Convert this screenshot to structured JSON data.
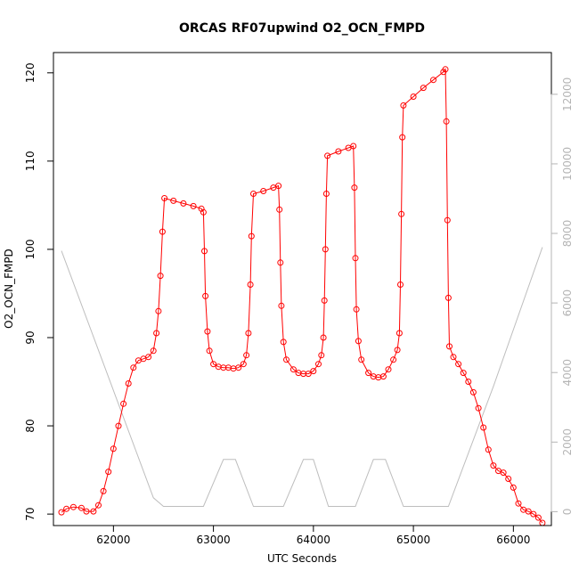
{
  "chart_data": {
    "type": "scatter",
    "title": "ORCAS RF07upwind O2_OCN_FMPD",
    "xlabel": "UTC Seconds",
    "ylabel": "O2_OCN_FMPD",
    "xlim": [
      61400,
      66380
    ],
    "ylim": [
      68.7,
      122.3
    ],
    "y2lim": [
      -400,
      13200
    ],
    "x_ticks": [
      62000,
      63000,
      64000,
      65000,
      66000
    ],
    "y_ticks": [
      70,
      80,
      90,
      100,
      110,
      120
    ],
    "y2_ticks": [
      0,
      2000,
      4000,
      6000,
      8000,
      10000,
      12000
    ],
    "grid": false,
    "legend": "none",
    "colors": {
      "primary": "#ff0000",
      "secondary": "#bebebe",
      "axis": "#000000",
      "right_axis": "#b4b4b4"
    },
    "series": [
      {
        "role": "primary",
        "style": "line-with-open-circles",
        "points": [
          [
            61480,
            70.2
          ],
          [
            61530,
            70.6
          ],
          [
            61600,
            70.8
          ],
          [
            61680,
            70.7
          ],
          [
            61730,
            70.3
          ],
          [
            61800,
            70.3
          ],
          [
            61850,
            71.0
          ],
          [
            61900,
            72.6
          ],
          [
            61950,
            74.8
          ],
          [
            62000,
            77.4
          ],
          [
            62050,
            80.0
          ],
          [
            62100,
            82.5
          ],
          [
            62150,
            84.8
          ],
          [
            62200,
            86.6
          ],
          [
            62250,
            87.4
          ],
          [
            62300,
            87.6
          ],
          [
            62350,
            87.8
          ],
          [
            62400,
            88.5
          ],
          [
            62430,
            90.5
          ],
          [
            62450,
            93.0
          ],
          [
            62470,
            97.0
          ],
          [
            62490,
            102.0
          ],
          [
            62510,
            105.8
          ],
          [
            62600,
            105.5
          ],
          [
            62700,
            105.2
          ],
          [
            62800,
            104.9
          ],
          [
            62880,
            104.6
          ],
          [
            62900,
            104.2
          ],
          [
            62910,
            99.8
          ],
          [
            62920,
            94.7
          ],
          [
            62940,
            90.7
          ],
          [
            62960,
            88.5
          ],
          [
            63000,
            87.0
          ],
          [
            63050,
            86.7
          ],
          [
            63100,
            86.6
          ],
          [
            63150,
            86.6
          ],
          [
            63200,
            86.5
          ],
          [
            63250,
            86.6
          ],
          [
            63300,
            87.0
          ],
          [
            63330,
            88.0
          ],
          [
            63350,
            90.5
          ],
          [
            63370,
            96.0
          ],
          [
            63380,
            101.5
          ],
          [
            63400,
            106.3
          ],
          [
            63500,
            106.6
          ],
          [
            63600,
            107.0
          ],
          [
            63650,
            107.2
          ],
          [
            63660,
            104.5
          ],
          [
            63670,
            98.5
          ],
          [
            63680,
            93.6
          ],
          [
            63700,
            89.5
          ],
          [
            63730,
            87.5
          ],
          [
            63800,
            86.4
          ],
          [
            63850,
            86.0
          ],
          [
            63900,
            85.9
          ],
          [
            63950,
            85.9
          ],
          [
            64000,
            86.2
          ],
          [
            64050,
            87.0
          ],
          [
            64080,
            88.0
          ],
          [
            64100,
            90.0
          ],
          [
            64110,
            94.2
          ],
          [
            64120,
            100.0
          ],
          [
            64130,
            106.3
          ],
          [
            64140,
            110.6
          ],
          [
            64250,
            111.1
          ],
          [
            64350,
            111.5
          ],
          [
            64400,
            111.7
          ],
          [
            64410,
            107.0
          ],
          [
            64420,
            99.0
          ],
          [
            64430,
            93.2
          ],
          [
            64450,
            89.6
          ],
          [
            64480,
            87.5
          ],
          [
            64550,
            86.0
          ],
          [
            64600,
            85.6
          ],
          [
            64650,
            85.5
          ],
          [
            64700,
            85.6
          ],
          [
            64750,
            86.4
          ],
          [
            64800,
            87.5
          ],
          [
            64840,
            88.6
          ],
          [
            64860,
            90.5
          ],
          [
            64870,
            96.0
          ],
          [
            64880,
            104.0
          ],
          [
            64890,
            112.7
          ],
          [
            64900,
            116.3
          ],
          [
            65000,
            117.3
          ],
          [
            65100,
            118.3
          ],
          [
            65200,
            119.2
          ],
          [
            65300,
            120.1
          ],
          [
            65320,
            120.4
          ],
          [
            65330,
            114.5
          ],
          [
            65340,
            103.3
          ],
          [
            65350,
            94.5
          ],
          [
            65360,
            89.0
          ],
          [
            65400,
            87.8
          ],
          [
            65450,
            87.0
          ],
          [
            65500,
            86.0
          ],
          [
            65550,
            85.0
          ],
          [
            65600,
            83.8
          ],
          [
            65650,
            82.0
          ],
          [
            65700,
            79.8
          ],
          [
            65750,
            77.3
          ],
          [
            65800,
            75.5
          ],
          [
            65850,
            74.9
          ],
          [
            65900,
            74.7
          ],
          [
            65950,
            74.0
          ],
          [
            66000,
            73.0
          ],
          [
            66050,
            71.2
          ],
          [
            66100,
            70.5
          ],
          [
            66150,
            70.3
          ],
          [
            66200,
            70.0
          ],
          [
            66250,
            69.6
          ],
          [
            66290,
            69.0
          ]
        ]
      },
      {
        "role": "secondary-right-axis",
        "style": "thin-line",
        "points": [
          [
            61480,
            7500
          ],
          [
            62400,
            400
          ],
          [
            62500,
            150
          ],
          [
            62900,
            150
          ],
          [
            63100,
            1500
          ],
          [
            63220,
            1500
          ],
          [
            63400,
            150
          ],
          [
            63700,
            150
          ],
          [
            63900,
            1500
          ],
          [
            64000,
            1500
          ],
          [
            64150,
            150
          ],
          [
            64420,
            150
          ],
          [
            64600,
            1500
          ],
          [
            64720,
            1500
          ],
          [
            64900,
            150
          ],
          [
            65350,
            150
          ],
          [
            65800,
            3600
          ],
          [
            66290,
            7600
          ]
        ]
      }
    ]
  }
}
